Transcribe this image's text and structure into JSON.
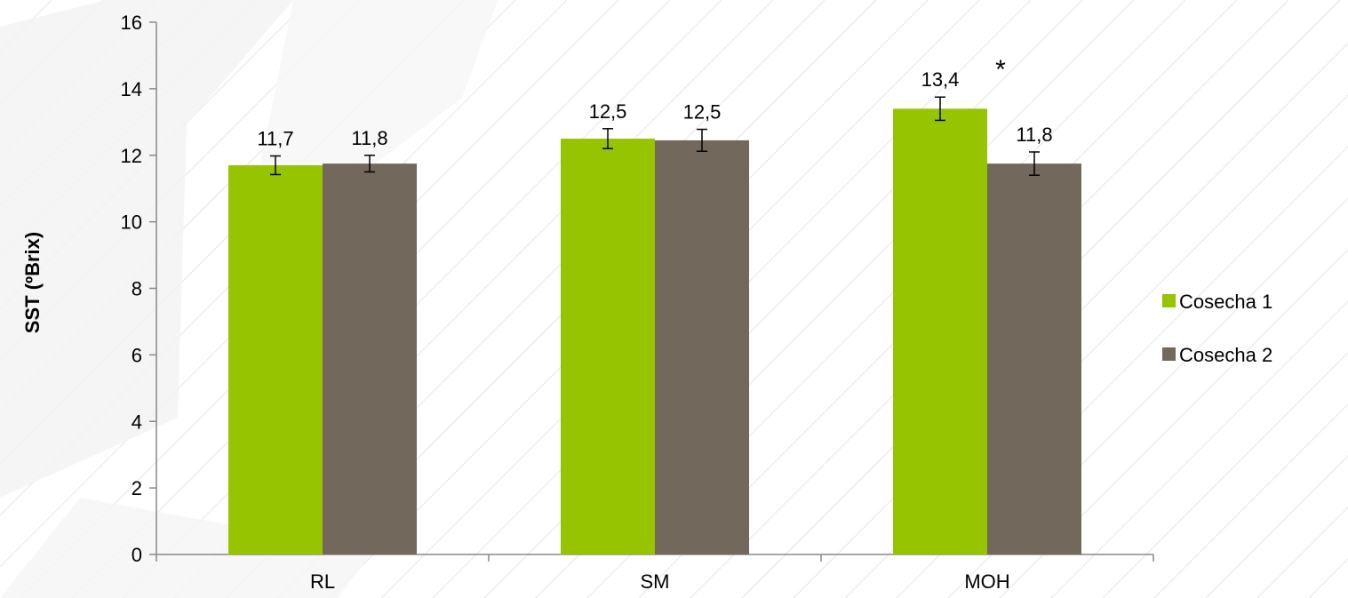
{
  "colors": {
    "series1": "#97C400",
    "series2": "#72685B",
    "axis": "#888888",
    "error_bar": "#000000"
  },
  "chart_data": {
    "type": "bar",
    "categories": [
      "RL",
      "SM",
      "MOH"
    ],
    "series": [
      {
        "name": "Cosecha 1",
        "values": [
          11.7,
          12.5,
          13.4
        ],
        "labels": [
          "11,7",
          "12,5",
          "13,4"
        ],
        "errors": [
          0.28,
          0.3,
          0.35
        ]
      },
      {
        "name": "Cosecha 2",
        "values": [
          11.75,
          12.45,
          11.75
        ],
        "labels": [
          "11,8",
          "12,5",
          "11,8"
        ],
        "errors": [
          0.25,
          0.33,
          0.35
        ]
      }
    ],
    "ylabel": "SST (ºBrix)",
    "ylim": [
      0,
      16
    ],
    "yticks": [
      0,
      2,
      4,
      6,
      8,
      10,
      12,
      14,
      16
    ],
    "grid": false,
    "legend_position": "right",
    "annotations": [
      {
        "text": "*",
        "category": "MOH",
        "y": 14.8
      }
    ]
  }
}
